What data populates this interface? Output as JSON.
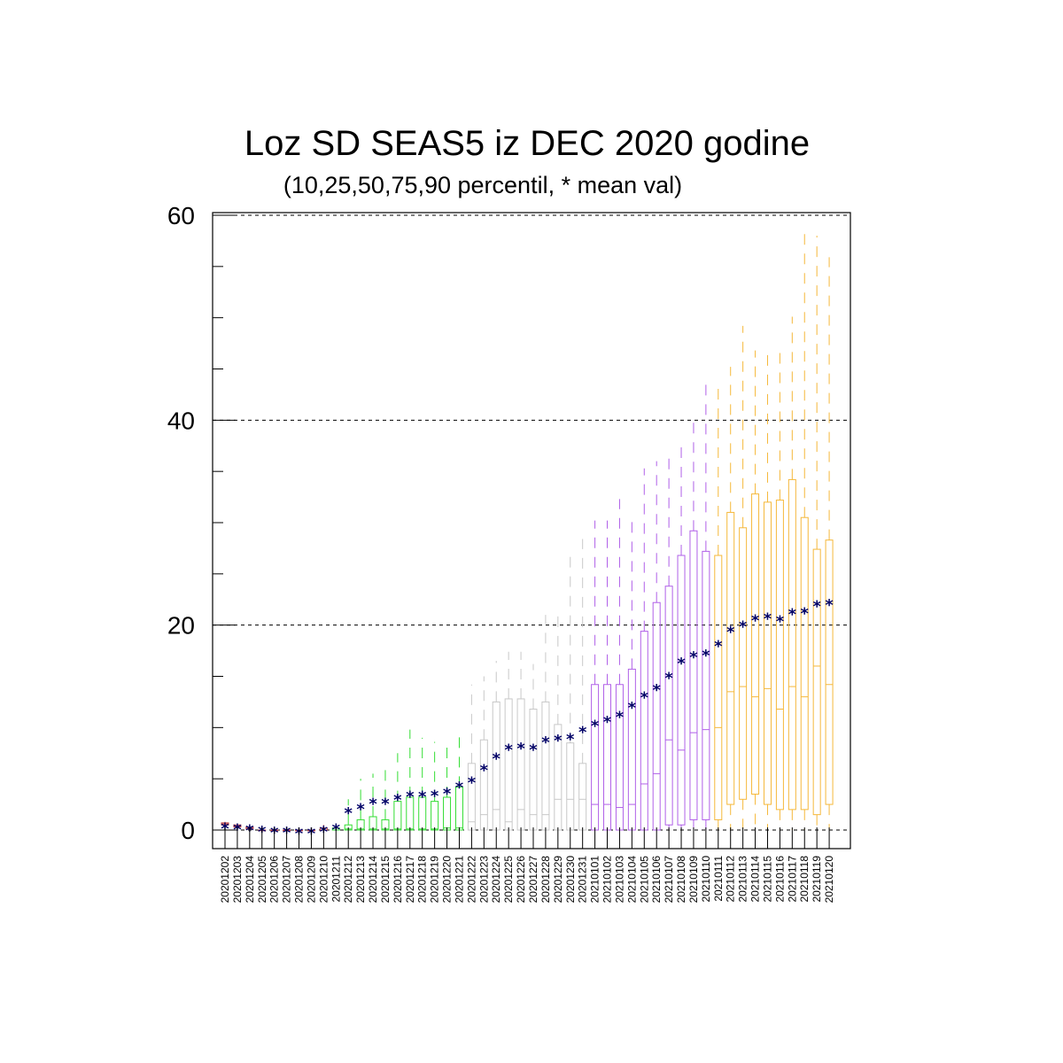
{
  "chart_data": {
    "type": "boxplot",
    "title": "Loz SD SEAS5 iz DEC 2020 godine",
    "subtitle": "(10,25,50,75,90 percentil, * mean val)",
    "xlabel": "",
    "ylabel": "",
    "ylim": [
      -2,
      62
    ],
    "yticks": [
      0,
      20,
      40,
      60
    ],
    "yminor_step": 5,
    "grid": "horizontal dashed at major y ticks",
    "mean_color": "#000066",
    "months": [
      {
        "name": "2020-12",
        "color": "#33dd33",
        "first": "20201211",
        "last": "20201221"
      },
      {
        "name": "2020-12b",
        "color": "#c8c8c8",
        "first": "20201222",
        "last": "20201231"
      },
      {
        "name": "2021-01",
        "color": "#b060e8",
        "first": "20210101",
        "last": "20210110"
      },
      {
        "name": "2021-01b",
        "color": "#f5b83a",
        "first": "20210111",
        "last": "20210120"
      }
    ],
    "categories": [
      "20201202",
      "20201203",
      "20201204",
      "20201205",
      "20201206",
      "20201207",
      "20201208",
      "20201209",
      "20201210",
      "20201211",
      "20201212",
      "20201213",
      "20201214",
      "20201215",
      "20201216",
      "20201217",
      "20201218",
      "20201219",
      "20201220",
      "20201221",
      "20201222",
      "20201223",
      "20201224",
      "20201225",
      "20201226",
      "20201227",
      "20201228",
      "20201229",
      "20201230",
      "20201231",
      "20210101",
      "20210102",
      "20210103",
      "20210104",
      "20210105",
      "20210106",
      "20210107",
      "20210108",
      "20210109",
      "20210110",
      "20210111",
      "20210112",
      "20210113",
      "20210114",
      "20210115",
      "20210116",
      "20210117",
      "20210118",
      "20210119",
      "20210120"
    ],
    "p10": [
      0.4,
      0.2,
      0.1,
      0,
      0,
      0,
      0,
      0,
      0,
      0,
      0,
      0,
      0,
      0,
      0,
      0,
      0,
      0,
      0,
      0,
      0,
      0,
      0,
      0,
      0,
      0,
      0,
      0,
      0,
      0,
      0,
      0,
      0,
      0,
      0,
      0,
      0,
      0,
      0,
      0,
      0,
      0,
      0,
      0,
      0,
      0,
      0,
      0,
      0,
      0
    ],
    "p25": [
      0.5,
      0.3,
      0.1,
      0,
      0,
      0,
      0,
      0,
      0,
      0,
      0,
      0,
      0,
      0,
      0,
      0,
      0,
      0,
      0,
      0,
      0,
      0,
      0,
      0,
      0,
      0,
      0,
      0,
      0,
      0,
      0,
      0,
      0,
      0,
      0,
      0,
      0.5,
      0.5,
      1,
      1,
      1,
      2.5,
      3,
      3.5,
      2.5,
      2,
      2,
      2,
      1.5,
      2.5
    ],
    "p50": [
      0.6,
      0.4,
      0.2,
      0,
      0,
      0,
      0,
      0,
      0,
      0,
      0.1,
      0.1,
      0.1,
      0.1,
      0.1,
      0.1,
      0.1,
      0.1,
      0.2,
      0.2,
      0.8,
      1.5,
      2,
      0.8,
      2,
      1.5,
      1.5,
      3,
      3,
      3,
      2.5,
      2.5,
      2.2,
      2.5,
      4.5,
      5.5,
      8.8,
      7.8,
      9.5,
      9.8,
      10,
      13.5,
      14,
      13,
      13.8,
      11.8,
      14,
      13,
      16,
      14.2
    ],
    "p75": [
      0.7,
      0.5,
      0.3,
      0,
      0,
      0,
      0,
      0,
      0.2,
      0.2,
      0.5,
      1,
      1.3,
      1,
      2.8,
      3.2,
      3.2,
      2.8,
      3.2,
      4.2,
      6.5,
      8.8,
      12.5,
      12.8,
      12.8,
      11.8,
      12.5,
      10.3,
      8.5,
      6.5,
      14.2,
      14.2,
      14.2,
      15.7,
      19.4,
      22.2,
      23.8,
      26.8,
      29.2,
      27.2,
      26.8,
      31,
      29.5,
      32.8,
      32,
      32.2,
      34.2,
      30.5,
      27.4,
      28.3
    ],
    "p90": [
      0.8,
      0.6,
      0.4,
      0.1,
      0,
      0,
      0,
      0,
      0.5,
      0.5,
      3,
      5,
      5.5,
      6,
      7.5,
      9.8,
      9,
      8.6,
      8.8,
      9.6,
      14.2,
      15,
      16.5,
      17.4,
      17.4,
      16.2,
      21,
      21.3,
      27.2,
      28.4,
      30.2,
      30.2,
      32.3,
      30.3,
      35.3,
      36,
      36.5,
      37.8,
      40,
      43.5,
      43.8,
      45.2,
      49.2,
      46.8,
      47,
      46.8,
      50.1,
      58.2,
      58,
      55.9
    ],
    "mean": [
      0.4,
      0.3,
      0.2,
      0.1,
      0,
      0,
      -0.1,
      -0.1,
      0.1,
      0.3,
      1.9,
      2.3,
      2.8,
      2.8,
      3.2,
      3.5,
      3.5,
      3.6,
      3.8,
      4.4,
      4.9,
      6.1,
      7.2,
      8.1,
      8.2,
      8.1,
      8.8,
      9,
      9.1,
      9.8,
      10.4,
      10.8,
      11.3,
      12.2,
      13.2,
      13.9,
      15.1,
      16.5,
      17.1,
      17.3,
      18.2,
      19.6,
      20.1,
      20.7,
      20.9,
      20.6,
      21.3,
      21.4,
      22.1,
      22.2
    ]
  }
}
